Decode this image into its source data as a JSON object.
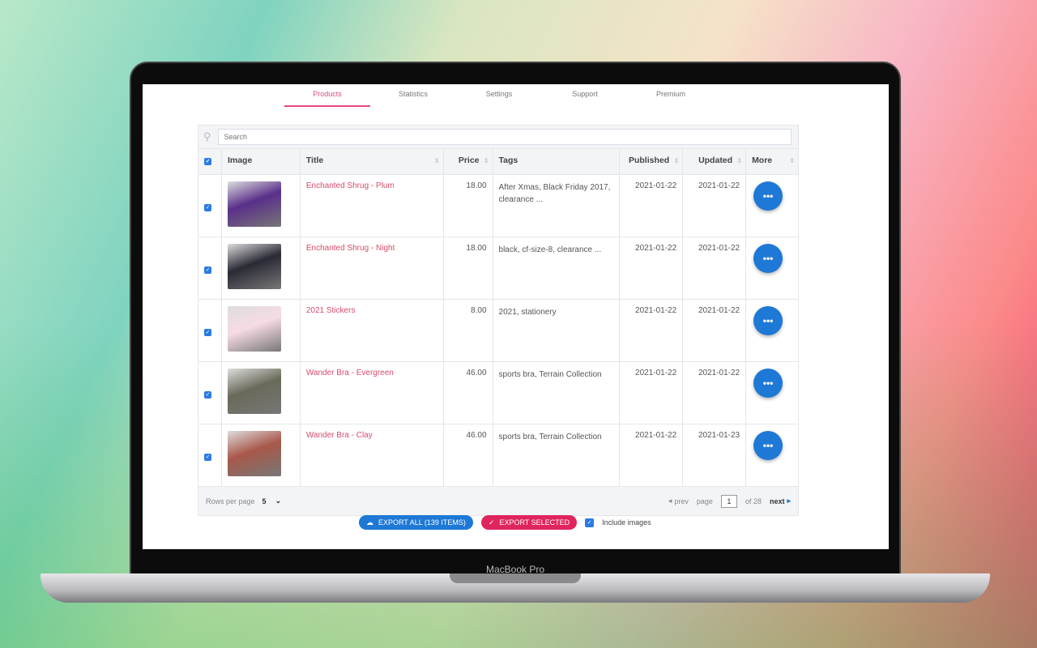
{
  "tabs": [
    {
      "label": "Products",
      "active": true
    },
    {
      "label": "Statistics"
    },
    {
      "label": "Settings"
    },
    {
      "label": "Support"
    },
    {
      "label": "Premium"
    }
  ],
  "search": {
    "placeholder": "Search"
  },
  "columns": [
    "Image",
    "Title",
    "Price",
    "Tags",
    "Published",
    "Updated",
    "More"
  ],
  "rows": [
    {
      "title": "Enchanted Shrug - Plum",
      "price": "18.00",
      "tags": "After Xmas, Black Friday 2017, clearance ...",
      "published": "2021-01-22",
      "updated": "2021-01-22",
      "thumb_color": "#5a2f8a",
      "checked": true
    },
    {
      "title": "Enchanted Shrug - Night",
      "price": "18.00",
      "tags": "black, cf-size-8, clearance ...",
      "published": "2021-01-22",
      "updated": "2021-01-22",
      "thumb_color": "#2a2a35",
      "checked": true
    },
    {
      "title": "2021 Stickers",
      "price": "8.00",
      "tags": "2021, stationery",
      "published": "2021-01-22",
      "updated": "2021-01-22",
      "thumb_color": "#f6dbe3",
      "checked": true
    },
    {
      "title": "Wander Bra - Evergreen",
      "price": "46.00",
      "tags": "sports bra, Terrain Collection",
      "published": "2021-01-22",
      "updated": "2021-01-22",
      "thumb_color": "#6a6a5a",
      "checked": true
    },
    {
      "title": "Wander Bra - Clay",
      "price": "46.00",
      "tags": "sports bra, Terrain Collection",
      "published": "2021-01-22",
      "updated": "2021-01-23",
      "thumb_color": "#a8584a",
      "checked": true
    }
  ],
  "footer": {
    "rows_per_page_label": "Rows per page",
    "rows_per_page": "5",
    "prev": "prev",
    "page_label": "page",
    "page": "1",
    "of": "of 28",
    "next": "next"
  },
  "actions": {
    "export_all": "EXPORT ALL (139 ITEMS)",
    "export_selected": "EXPORT SELECTED",
    "include_images": "Include images",
    "include_images_checked": true
  },
  "device_label": "MacBook Pro",
  "colors": {
    "accent": "#e04a78",
    "primary": "#1e78d6"
  }
}
